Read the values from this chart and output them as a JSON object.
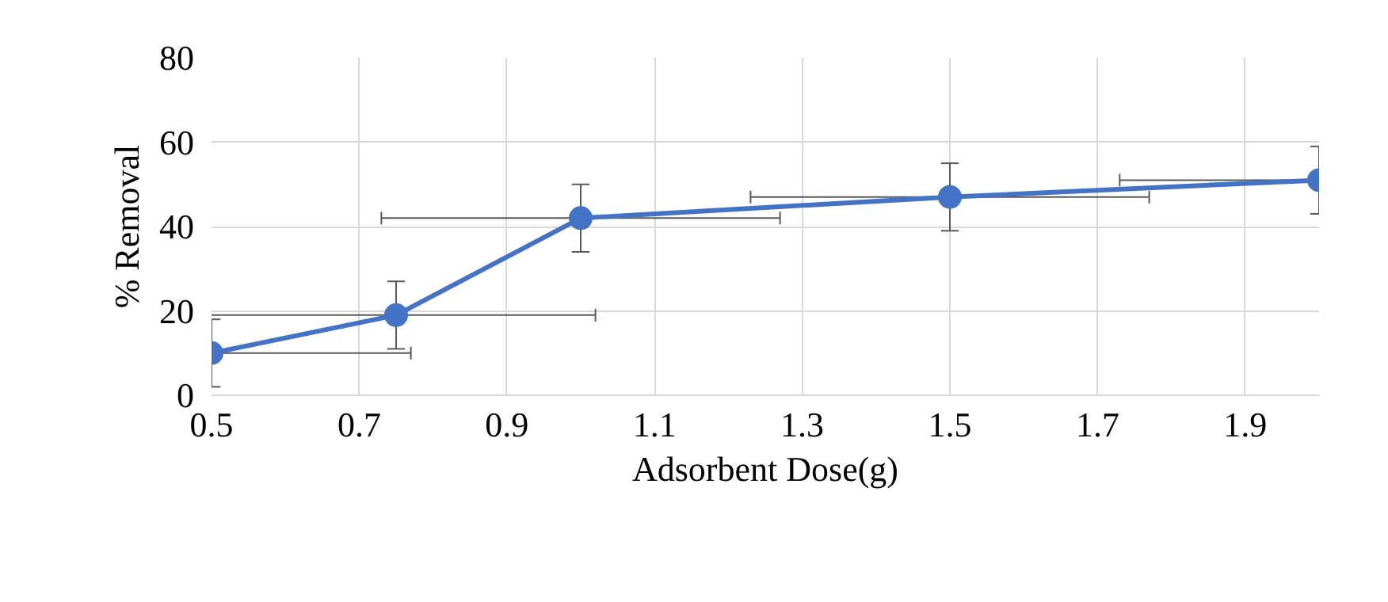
{
  "chart_data": {
    "type": "line",
    "xlabel": "Adsorbent Dose(g)",
    "ylabel": "% Removal",
    "x": [
      0.5,
      0.75,
      1.0,
      1.5,
      2.0
    ],
    "series": [
      {
        "color": "#4472c4",
        "values": [
          10,
          19,
          42,
          47,
          51
        ],
        "errors": [
          8,
          8,
          8,
          8,
          8
        ],
        "xerrors": [
          [
            0.5,
            0.77
          ],
          [
            0.5,
            1.02
          ],
          0.27,
          0.27,
          [
            1.73,
            2.0
          ]
        ]
      }
    ],
    "xlim": [
      0.5,
      2.0
    ],
    "xticks": [
      0.5,
      0.7,
      0.9,
      1.1,
      1.3,
      1.5,
      1.7,
      1.9
    ],
    "ylim": [
      0,
      80
    ],
    "yticks": [
      0,
      20,
      40,
      60,
      80
    ],
    "grid": true,
    "marker": "circle",
    "line_style": "solid"
  }
}
